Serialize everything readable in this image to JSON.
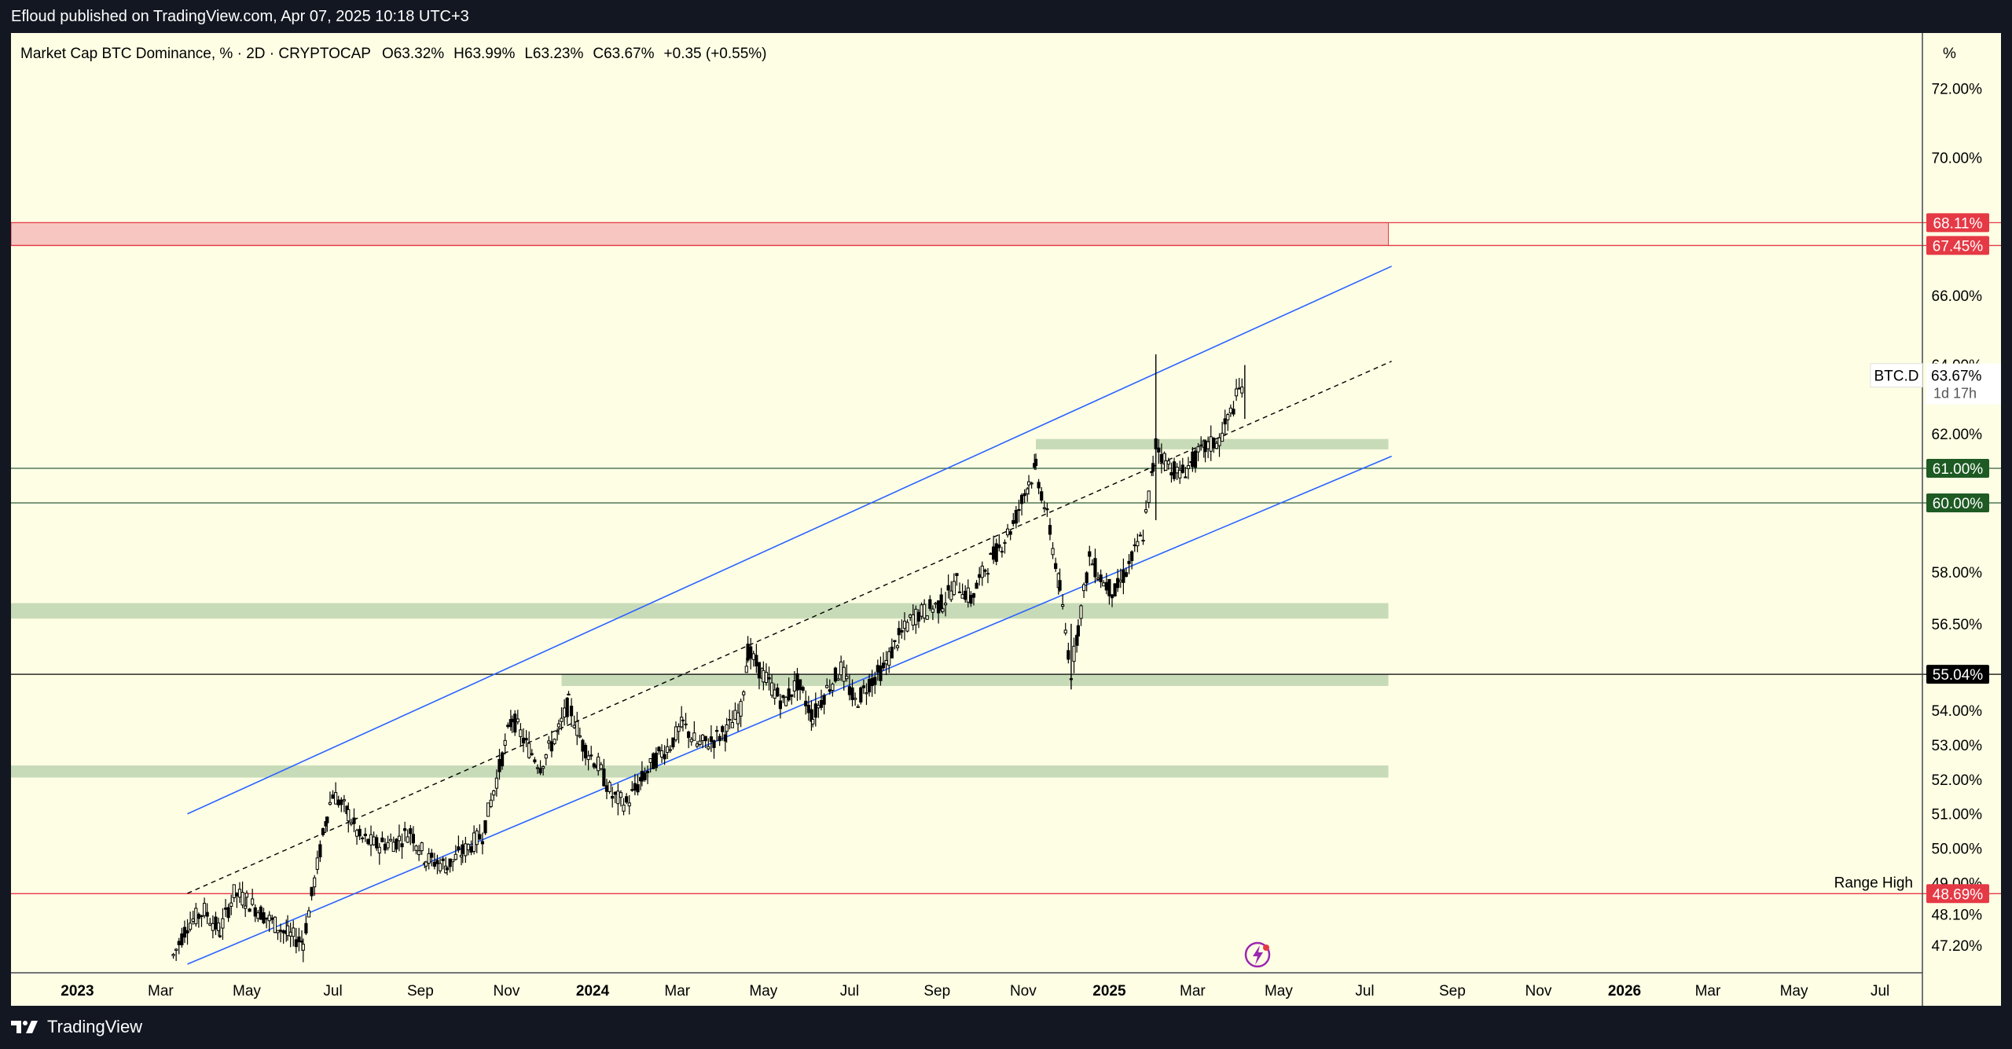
{
  "header": {
    "published": "Efloud published on TradingView.com, Apr 07, 2025 10:18 UTC+3"
  },
  "chart": {
    "symbol_line": "Market Cap BTC Dominance, % · 2D · CRYPTOCAP",
    "ohlc": {
      "o": "O63.32%",
      "h": "H63.99%",
      "l": "L63.23%",
      "c": "C63.67%",
      "chg": "+0.35 (+0.55%)"
    },
    "axis_unit": "%",
    "price_label_symbol": "BTC.D",
    "price_label_value": "63.67%",
    "price_label_timer": "1d 17h",
    "range_high_label": "Range High",
    "colors": {
      "background": "#fefee5",
      "candle": "#000000",
      "channel": "#2962ff",
      "resistance_zone": "#f7c6c1",
      "support_zone": "#c8dbb8",
      "red_line": "#e53945",
      "green_line": "#1b5e20"
    }
  },
  "footer": {
    "brand": "TradingView"
  },
  "chart_data": {
    "type": "candlestick",
    "title": "Market Cap BTC Dominance, % · 2D · CRYPTOCAP",
    "y_unit": "%",
    "ylim": [
      46.4,
      73.6
    ],
    "x_range": [
      "2022-11-15",
      "2026-07-31"
    ],
    "y_ticks": [
      "72.00%",
      "70.00%",
      "66.00%",
      "64.00%",
      "62.00%",
      "58.00%",
      "56.50%",
      "54.00%",
      "53.00%",
      "52.00%",
      "51.00%",
      "50.00%",
      "49.00%",
      "48.10%",
      "47.20%"
    ],
    "y_tick_values": [
      72,
      70,
      66,
      64,
      62,
      58,
      56.5,
      54,
      53,
      52,
      51,
      50,
      49,
      48.1,
      47.2
    ],
    "x_ticks": [
      {
        "label": "2023",
        "date": "2023-01-01",
        "bold": true
      },
      {
        "label": "Mar",
        "date": "2023-03-01"
      },
      {
        "label": "May",
        "date": "2023-05-01"
      },
      {
        "label": "Jul",
        "date": "2023-07-01"
      },
      {
        "label": "Sep",
        "date": "2023-09-01"
      },
      {
        "label": "Nov",
        "date": "2023-11-01"
      },
      {
        "label": "2024",
        "date": "2024-01-01",
        "bold": true
      },
      {
        "label": "Mar",
        "date": "2024-03-01"
      },
      {
        "label": "May",
        "date": "2024-05-01"
      },
      {
        "label": "Jul",
        "date": "2024-07-01"
      },
      {
        "label": "Sep",
        "date": "2024-09-01"
      },
      {
        "label": "Nov",
        "date": "2024-11-01"
      },
      {
        "label": "2025",
        "date": "2025-01-01",
        "bold": true
      },
      {
        "label": "Mar",
        "date": "2025-03-01"
      },
      {
        "label": "May",
        "date": "2025-05-01"
      },
      {
        "label": "Jul",
        "date": "2025-07-01"
      },
      {
        "label": "Sep",
        "date": "2025-09-01"
      },
      {
        "label": "Nov",
        "date": "2025-11-01"
      },
      {
        "label": "2026",
        "date": "2026-01-01",
        "bold": true
      },
      {
        "label": "Mar",
        "date": "2026-03-01"
      },
      {
        "label": "May",
        "date": "2026-05-01"
      },
      {
        "label": "Jul",
        "date": "2026-07-01"
      }
    ],
    "series": [
      {
        "name": "BTC.D",
        "points": [
          {
            "date": "2023-03-10",
            "value": 46.9
          },
          {
            "date": "2023-03-20",
            "value": 47.8
          },
          {
            "date": "2023-04-01",
            "value": 48.2
          },
          {
            "date": "2023-04-12",
            "value": 47.6
          },
          {
            "date": "2023-04-22",
            "value": 48.7
          },
          {
            "date": "2023-05-01",
            "value": 48.5
          },
          {
            "date": "2023-05-15",
            "value": 48.0
          },
          {
            "date": "2023-05-30",
            "value": 47.5
          },
          {
            "date": "2023-06-10",
            "value": 47.3
          },
          {
            "date": "2023-06-20",
            "value": 49.5
          },
          {
            "date": "2023-06-27",
            "value": 51.0
          },
          {
            "date": "2023-07-01",
            "value": 51.6
          },
          {
            "date": "2023-07-12",
            "value": 51.0
          },
          {
            "date": "2023-07-20",
            "value": 50.3
          },
          {
            "date": "2023-08-01",
            "value": 50.1
          },
          {
            "date": "2023-08-15",
            "value": 50.2
          },
          {
            "date": "2023-08-25",
            "value": 50.5
          },
          {
            "date": "2023-09-05",
            "value": 49.7
          },
          {
            "date": "2023-09-20",
            "value": 49.5
          },
          {
            "date": "2023-10-01",
            "value": 49.9
          },
          {
            "date": "2023-10-15",
            "value": 50.4
          },
          {
            "date": "2023-10-25",
            "value": 52.0
          },
          {
            "date": "2023-11-05",
            "value": 53.8
          },
          {
            "date": "2023-11-15",
            "value": 53.0
          },
          {
            "date": "2023-11-25",
            "value": 52.4
          },
          {
            "date": "2023-12-08",
            "value": 53.4
          },
          {
            "date": "2023-12-15",
            "value": 54.2
          },
          {
            "date": "2023-12-25",
            "value": 53.0
          },
          {
            "date": "2024-01-05",
            "value": 52.4
          },
          {
            "date": "2024-01-15",
            "value": 51.5
          },
          {
            "date": "2024-01-25",
            "value": 51.3
          },
          {
            "date": "2024-02-05",
            "value": 52.0
          },
          {
            "date": "2024-02-15",
            "value": 52.6
          },
          {
            "date": "2024-02-25",
            "value": 53.0
          },
          {
            "date": "2024-03-05",
            "value": 53.6
          },
          {
            "date": "2024-03-15",
            "value": 53.0
          },
          {
            "date": "2024-03-25",
            "value": 53.1
          },
          {
            "date": "2024-04-05",
            "value": 53.4
          },
          {
            "date": "2024-04-15",
            "value": 54.0
          },
          {
            "date": "2024-04-20",
            "value": 55.7
          },
          {
            "date": "2024-05-01",
            "value": 55.0
          },
          {
            "date": "2024-05-15",
            "value": 54.2
          },
          {
            "date": "2024-05-25",
            "value": 54.8
          },
          {
            "date": "2024-06-05",
            "value": 53.8
          },
          {
            "date": "2024-06-15",
            "value": 54.6
          },
          {
            "date": "2024-06-25",
            "value": 55.2
          },
          {
            "date": "2024-07-05",
            "value": 54.2
          },
          {
            "date": "2024-07-15",
            "value": 54.8
          },
          {
            "date": "2024-07-25",
            "value": 55.2
          },
          {
            "date": "2024-08-05",
            "value": 56.1
          },
          {
            "date": "2024-08-15",
            "value": 56.7
          },
          {
            "date": "2024-08-25",
            "value": 56.9
          },
          {
            "date": "2024-09-05",
            "value": 57.1
          },
          {
            "date": "2024-09-15",
            "value": 57.7
          },
          {
            "date": "2024-09-25",
            "value": 57.2
          },
          {
            "date": "2024-10-05",
            "value": 58.1
          },
          {
            "date": "2024-10-15",
            "value": 58.7
          },
          {
            "date": "2024-10-25",
            "value": 59.4
          },
          {
            "date": "2024-11-05",
            "value": 60.6
          },
          {
            "date": "2024-11-10",
            "value": 61.0
          },
          {
            "date": "2024-11-20",
            "value": 59.2
          },
          {
            "date": "2024-11-27",
            "value": 57.5
          },
          {
            "date": "2024-12-05",
            "value": 55.1
          },
          {
            "date": "2024-12-10",
            "value": 56.4
          },
          {
            "date": "2024-12-18",
            "value": 58.4
          },
          {
            "date": "2024-12-28",
            "value": 57.7
          },
          {
            "date": "2025-01-05",
            "value": 57.4
          },
          {
            "date": "2025-01-15",
            "value": 58.2
          },
          {
            "date": "2025-01-25",
            "value": 59.1
          },
          {
            "date": "2025-02-01",
            "value": 61.0
          },
          {
            "date": "2025-02-03",
            "value": 61.7
          },
          {
            "date": "2025-02-10",
            "value": 61.2
          },
          {
            "date": "2025-02-20",
            "value": 60.8
          },
          {
            "date": "2025-03-01",
            "value": 61.2
          },
          {
            "date": "2025-03-10",
            "value": 61.6
          },
          {
            "date": "2025-03-20",
            "value": 61.8
          },
          {
            "date": "2025-03-28",
            "value": 62.6
          },
          {
            "date": "2025-04-07",
            "value": 63.67
          }
        ]
      }
    ],
    "current": {
      "open": 63.32,
      "high": 63.99,
      "low": 63.23,
      "close": 63.67,
      "change": 0.35,
      "change_pct": 0.55
    },
    "horizontal_lines": [
      {
        "value": 61.0,
        "label": "61.00%",
        "label_color": "#1b5e20"
      },
      {
        "value": 60.0,
        "label": "60.00%",
        "label_color": "#1b5e20"
      },
      {
        "value": 55.04,
        "label": "55.04%",
        "label_color": "#000000"
      },
      {
        "value": 48.69,
        "label": "48.69%",
        "label_color": "#e53945",
        "text": "Range High"
      }
    ],
    "resistance_zone": {
      "low": 67.45,
      "high": 68.11,
      "labels": [
        "68.11%",
        "67.45%"
      ]
    },
    "support_zones": [
      {
        "start": "2024-11-10",
        "low": 61.55,
        "high": 61.85
      },
      {
        "start": "2022-11-15",
        "low": 56.65,
        "high": 57.1
      },
      {
        "start": "2023-12-10",
        "low": 54.7,
        "high": 55.04
      },
      {
        "start": "2022-11-15",
        "low": 52.05,
        "high": 52.4
      }
    ],
    "channel": {
      "upper": [
        {
          "date": "2023-03-20",
          "value": 51.0
        },
        {
          "date": "2025-07-20",
          "value": 66.85
        }
      ],
      "lower": [
        {
          "date": "2023-03-20",
          "value": 46.65
        },
        {
          "date": "2025-07-20",
          "value": 61.35
        }
      ],
      "mid": [
        {
          "date": "2023-03-20",
          "value": 48.7
        },
        {
          "date": "2025-07-20",
          "value": 64.1
        }
      ]
    }
  }
}
